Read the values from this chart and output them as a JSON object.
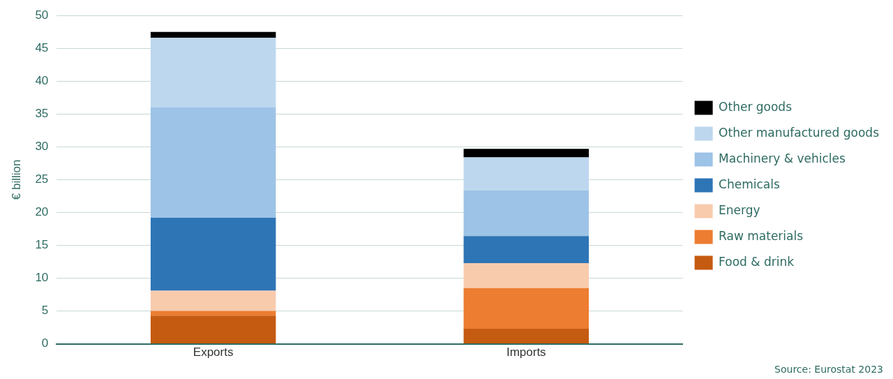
{
  "chart_data": {
    "type": "bar",
    "stacked": true,
    "ylabel": "€ billion",
    "categories": [
      "Exports",
      "Imports"
    ],
    "series": [
      {
        "name": "Food & drink",
        "color": "#c55a11",
        "values": [
          4.3,
          2.3
        ]
      },
      {
        "name": "Raw materials",
        "color": "#ed7d31",
        "values": [
          0.7,
          6.2
        ]
      },
      {
        "name": "Energy",
        "color": "#f8cbad",
        "values": [
          3.1,
          3.8
        ]
      },
      {
        "name": "Chemicals",
        "color": "#2e75b6",
        "values": [
          11.1,
          4.1
        ]
      },
      {
        "name": "Machinery & vehicles",
        "color": "#9dc3e6",
        "values": [
          16.8,
          7.0
        ]
      },
      {
        "name": "Other manufactured goods",
        "color": "#bdd7ee",
        "values": [
          10.6,
          5.0
        ]
      },
      {
        "name": "Other goods",
        "color": "#000000",
        "values": [
          0.9,
          1.3
        ]
      }
    ],
    "ylim": [
      0,
      50
    ],
    "yticks": [
      0,
      5,
      10,
      15,
      20,
      25,
      30,
      35,
      40,
      45,
      50
    ],
    "grid": "y",
    "legend": "right",
    "annotations": [
      "Source: Eurostat 2023"
    ]
  }
}
